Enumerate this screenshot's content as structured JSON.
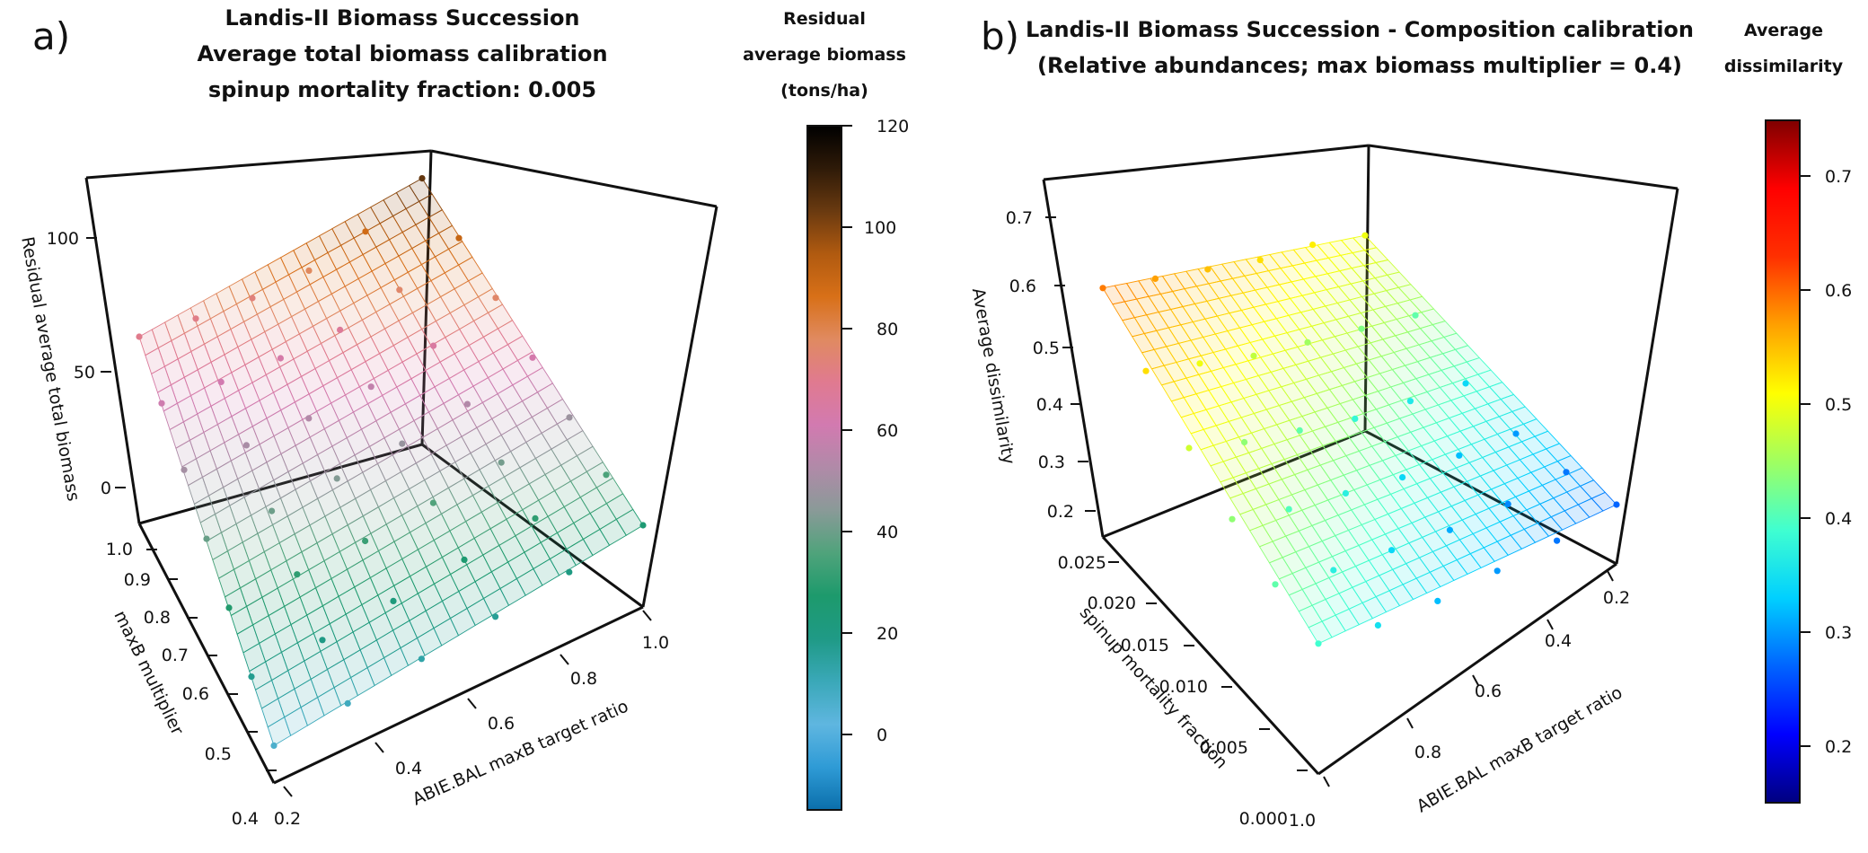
{
  "chart_data": [
    {
      "type": "surface3d",
      "panel_label": "a)",
      "title": [
        "Landis-II Biomass Succession",
        "Average total biomass calibration",
        "spinup mortality fraction: 0.005"
      ],
      "xlabel": "ABIE.BAL maxB target ratio",
      "ylabel": "maxB multiplier",
      "zlabel": "Residual average total biomass",
      "x_ticks": [
        "0.2",
        "0.4",
        "0.6",
        "0.8",
        "1.0"
      ],
      "y_ticks": [
        "0.4",
        "0.5",
        "0.6",
        "0.7",
        "0.8",
        "0.9",
        "1.0"
      ],
      "z_ticks": [
        "0",
        "50",
        "100"
      ],
      "xlim": [
        0.2,
        1.0
      ],
      "ylim": [
        0.4,
        1.0
      ],
      "zlim": [
        -10,
        125
      ],
      "z_corners": {
        "x0y0": 6,
        "x1y0": 25,
        "x0y1": 70,
        "x1y1": 104
      },
      "points": [
        [
          0.2,
          0.4,
          6
        ],
        [
          0.36,
          0.4,
          9
        ],
        [
          0.52,
          0.4,
          13
        ],
        [
          0.68,
          0.4,
          16
        ],
        [
          0.84,
          0.4,
          20
        ],
        [
          1.0,
          0.4,
          25
        ],
        [
          0.2,
          0.5,
          17
        ],
        [
          0.36,
          0.5,
          19
        ],
        [
          0.52,
          0.5,
          22
        ],
        [
          0.68,
          0.5,
          26
        ],
        [
          0.84,
          0.5,
          30
        ],
        [
          1.0,
          0.5,
          35
        ],
        [
          0.2,
          0.6,
          28
        ],
        [
          0.36,
          0.6,
          30
        ],
        [
          0.52,
          0.6,
          32
        ],
        [
          0.68,
          0.6,
          36
        ],
        [
          0.84,
          0.6,
          41
        ],
        [
          1.0,
          0.6,
          48
        ],
        [
          0.2,
          0.7,
          39
        ],
        [
          0.36,
          0.7,
          40
        ],
        [
          0.52,
          0.7,
          43
        ],
        [
          0.68,
          0.7,
          47
        ],
        [
          0.84,
          0.7,
          53
        ],
        [
          1.0,
          0.7,
          62
        ],
        [
          0.2,
          0.8,
          50
        ],
        [
          0.36,
          0.8,
          51
        ],
        [
          0.52,
          0.8,
          53
        ],
        [
          0.68,
          0.8,
          57
        ],
        [
          0.84,
          0.8,
          65
        ],
        [
          1.0,
          0.8,
          76
        ],
        [
          0.2,
          0.9,
          60
        ],
        [
          0.36,
          0.9,
          61
        ],
        [
          0.52,
          0.9,
          63
        ],
        [
          0.68,
          0.9,
          67
        ],
        [
          0.84,
          0.9,
          76
        ],
        [
          1.0,
          0.9,
          90
        ],
        [
          0.2,
          1.0,
          70
        ],
        [
          0.36,
          1.0,
          71
        ],
        [
          0.52,
          1.0,
          73
        ],
        [
          0.68,
          1.0,
          78
        ],
        [
          0.84,
          1.0,
          88
        ],
        [
          1.0,
          1.0,
          104
        ]
      ],
      "colorbar": {
        "title": [
          "Residual",
          "average biomass",
          "(tons/ha)"
        ],
        "ticks": [
          "0",
          "20",
          "40",
          "60",
          "80",
          "100",
          "120"
        ],
        "range": [
          -15,
          120
        ],
        "palette": [
          "#0b6fab",
          "#2f9bd6",
          "#5fb6e0",
          "#3aa8b8",
          "#1f9a86",
          "#1d9a6c",
          "#4fa37b",
          "#8a9a98",
          "#b08aa8",
          "#d27ab0",
          "#e07a90",
          "#e08a60",
          "#d87018",
          "#b05a10",
          "#6a3a10",
          "#2e1a08",
          "#000000"
        ]
      }
    },
    {
      "type": "surface3d",
      "panel_label": "b)",
      "title": [
        "Landis-II Biomass Succession - Composition calibration",
        "(Relative abundances; max biomass multiplier = 0.4)"
      ],
      "xlabel": "ABIE.BAL maxB target ratio",
      "ylabel": "spinup mortality fraction",
      "zlabel": "Average dissimilarity",
      "x_ticks": [
        "1.0",
        "0.8",
        "0.6",
        "0.4",
        "0.2"
      ],
      "y_ticks": [
        "0.000",
        "0.005",
        "0.010",
        "0.015",
        "0.020",
        "0.025"
      ],
      "z_ticks": [
        "0.2",
        "0.3",
        "0.4",
        "0.5",
        "0.6",
        "0.7"
      ],
      "xlim": [
        0.2,
        1.0
      ],
      "ylim": [
        0.0,
        0.025
      ],
      "zlim": [
        0.17,
        0.74
      ],
      "z_corners": {
        "x1y1": 0.59,
        "x0y1": 0.5,
        "x1y0": 0.39,
        "x0y0": 0.27
      },
      "points": [
        [
          1.0,
          0.025,
          0.59
        ],
        [
          0.84,
          0.025,
          0.57
        ],
        [
          0.68,
          0.025,
          0.55
        ],
        [
          0.52,
          0.025,
          0.53
        ],
        [
          0.36,
          0.025,
          0.52
        ],
        [
          0.2,
          0.025,
          0.5
        ],
        [
          1.0,
          0.02,
          0.53
        ],
        [
          0.84,
          0.02,
          0.5
        ],
        [
          0.68,
          0.02,
          0.47
        ],
        [
          0.52,
          0.02,
          0.45
        ],
        [
          0.36,
          0.02,
          0.43
        ],
        [
          0.2,
          0.02,
          0.41
        ],
        [
          1.0,
          0.015,
          0.48
        ],
        [
          0.84,
          0.015,
          0.44
        ],
        [
          0.68,
          0.015,
          0.41
        ],
        [
          0.52,
          0.015,
          0.38
        ],
        [
          0.36,
          0.015,
          0.36
        ],
        [
          0.2,
          0.015,
          0.34
        ],
        [
          1.0,
          0.01,
          0.44
        ],
        [
          0.84,
          0.01,
          0.4
        ],
        [
          0.68,
          0.01,
          0.37
        ],
        [
          0.52,
          0.01,
          0.34
        ],
        [
          0.36,
          0.01,
          0.32
        ],
        [
          0.2,
          0.01,
          0.3
        ],
        [
          1.0,
          0.005,
          0.41
        ],
        [
          0.84,
          0.005,
          0.37
        ],
        [
          0.68,
          0.005,
          0.34
        ],
        [
          0.52,
          0.005,
          0.31
        ],
        [
          0.36,
          0.005,
          0.29
        ],
        [
          0.2,
          0.005,
          0.28
        ],
        [
          1.0,
          0.0,
          0.39
        ],
        [
          0.84,
          0.0,
          0.35
        ],
        [
          0.68,
          0.0,
          0.32
        ],
        [
          0.52,
          0.0,
          0.3
        ],
        [
          0.36,
          0.0,
          0.28
        ],
        [
          0.2,
          0.0,
          0.27
        ]
      ],
      "colorbar": {
        "title": [
          "Average",
          "dissimilarity"
        ],
        "ticks": [
          "0.2",
          "0.3",
          "0.4",
          "0.5",
          "0.6",
          "0.7"
        ],
        "range": [
          0.15,
          0.75
        ],
        "palette": [
          "#00007f",
          "#0000ff",
          "#0064ff",
          "#00d0ff",
          "#40ffd0",
          "#a0ff60",
          "#ffff00",
          "#ffa000",
          "#ff3000",
          "#ff0000",
          "#7f0000"
        ]
      }
    }
  ]
}
